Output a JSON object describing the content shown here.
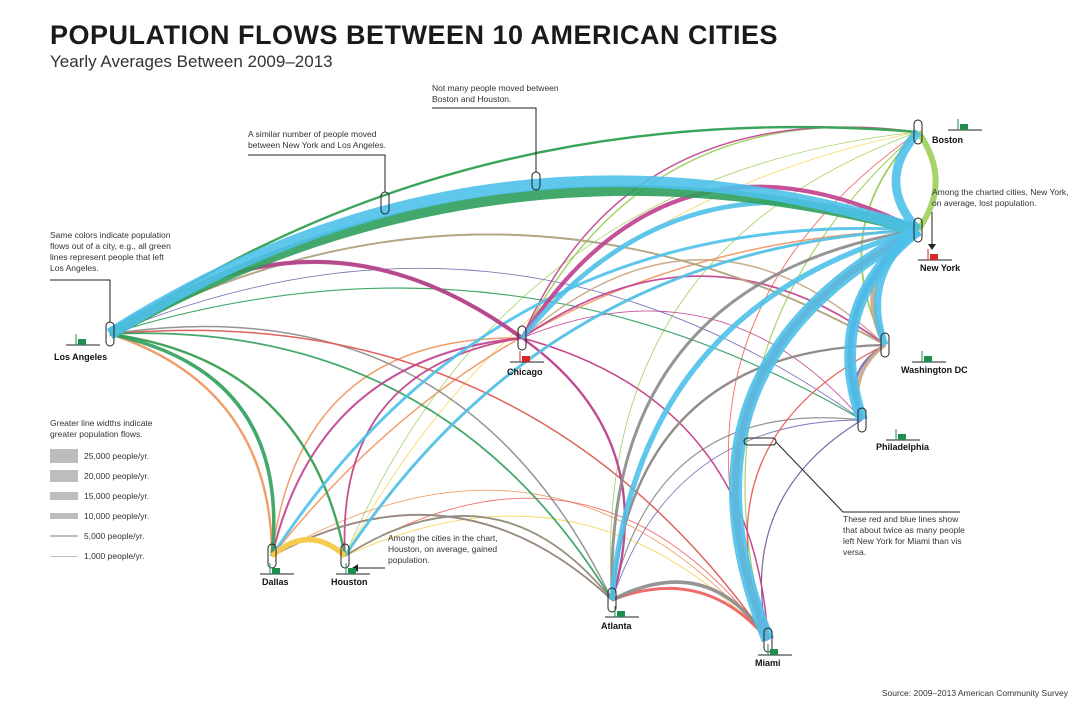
{
  "title": "POPULATION FLOWS BETWEEN 10 AMERICAN CITIES",
  "subtitle": "Yearly Averages Between 2009–2013",
  "source": "Source: 2009–2013 American Community Survey",
  "cities": [
    {
      "id": "la",
      "name": "Los Angeles",
      "color": "#2e9e5b",
      "net": "gain"
    },
    {
      "id": "boston",
      "name": "Boston",
      "color": "#9ccf5a",
      "net": "gain"
    },
    {
      "id": "ny",
      "name": "New York",
      "color": "#4ec0ea",
      "net": "loss"
    },
    {
      "id": "chicago",
      "name": "Chicago",
      "color": "#c0408f",
      "net": "loss"
    },
    {
      "id": "dc",
      "name": "Washington DC",
      "color": "#c8a585",
      "net": "gain"
    },
    {
      "id": "philly",
      "name": "Philadelphia",
      "color": "#6f67b0",
      "net": "gain"
    },
    {
      "id": "dallas",
      "name": "Dallas",
      "color": "#f0925a",
      "net": "gain"
    },
    {
      "id": "houston",
      "name": "Houston",
      "color": "#f6d04d",
      "net": "gain"
    },
    {
      "id": "atlanta",
      "name": "Atlanta",
      "color": "#8a8a8a",
      "net": "gain"
    },
    {
      "id": "miami",
      "name": "Miami",
      "color": "#ef5b5b",
      "net": "gain"
    }
  ],
  "annotations": {
    "boston_houston": "Not many people moved between Boston and Houston.",
    "ny_la": "A similar number of people moved between New York and Los Angeles.",
    "colors": "Same colors indicate population flows out of a city, e.g., all green lines represent people that left Los Angeles.",
    "ny_loss": "Among the charted cities, New York, on average, lost population.",
    "houston_gain": "Among the cities in the chart, Houston, on average, gained population.",
    "ny_miami": "These red and blue lines show that about twice as many people left New York for Miami than vis versa."
  },
  "legend": {
    "title": "Greater line widths indicate greater population flows.",
    "items": [
      {
        "label": "25,000 people/yr.",
        "value": 25000
      },
      {
        "label": "20,000 people/yr.",
        "value": 20000
      },
      {
        "label": "15,000 people/yr.",
        "value": 15000
      },
      {
        "label": "10,000 people/yr.",
        "value": 10000
      },
      {
        "label": "5,000 people/yr.",
        "value": 5000
      },
      {
        "label": "1,000 people/yr.",
        "value": 1000
      }
    ]
  },
  "flows": [
    {
      "from": "ny",
      "to": "la",
      "value": 20000
    },
    {
      "from": "la",
      "to": "ny",
      "value": 18000
    },
    {
      "from": "ny",
      "to": "miami",
      "value": 22000
    },
    {
      "from": "miami",
      "to": "ny",
      "value": 11000
    },
    {
      "from": "ny",
      "to": "boston",
      "value": 15000
    },
    {
      "from": "ny",
      "to": "philly",
      "value": 20000
    },
    {
      "from": "ny",
      "to": "dc",
      "value": 12000
    },
    {
      "from": "ny",
      "to": "atlanta",
      "value": 9000
    },
    {
      "from": "ny",
      "to": "chicago",
      "value": 8000
    },
    {
      "from": "ny",
      "to": "houston",
      "value": 5000
    },
    {
      "from": "ny",
      "to": "dallas",
      "value": 5000
    },
    {
      "from": "boston",
      "to": "ny",
      "value": 10000
    },
    {
      "from": "boston",
      "to": "la",
      "value": 4000
    },
    {
      "from": "boston",
      "to": "chicago",
      "value": 2500
    },
    {
      "from": "boston",
      "to": "dc",
      "value": 3000
    },
    {
      "from": "boston",
      "to": "atlanta",
      "value": 1500
    },
    {
      "from": "boston",
      "to": "miami",
      "value": 2000
    },
    {
      "from": "boston",
      "to": "houston",
      "value": 1000
    },
    {
      "from": "la",
      "to": "chicago",
      "value": 5000
    },
    {
      "from": "la",
      "to": "dallas",
      "value": 6000
    },
    {
      "from": "la",
      "to": "houston",
      "value": 4000
    },
    {
      "from": "la",
      "to": "boston",
      "value": 4000
    },
    {
      "from": "la",
      "to": "dc",
      "value": 3000
    },
    {
      "from": "la",
      "to": "atlanta",
      "value": 3000
    },
    {
      "from": "la",
      "to": "miami",
      "value": 2000
    },
    {
      "from": "la",
      "to": "philly",
      "value": 2000
    },
    {
      "from": "chicago",
      "to": "la",
      "value": 7000
    },
    {
      "from": "chicago",
      "to": "ny",
      "value": 7000
    },
    {
      "from": "chicago",
      "to": "atlanta",
      "value": 4000
    },
    {
      "from": "chicago",
      "to": "dallas",
      "value": 3500
    },
    {
      "from": "chicago",
      "to": "houston",
      "value": 3000
    },
    {
      "from": "chicago",
      "to": "dc",
      "value": 3000
    },
    {
      "from": "chicago",
      "to": "boston",
      "value": 2500
    },
    {
      "from": "chicago",
      "to": "miami",
      "value": 2500
    },
    {
      "from": "chicago",
      "to": "philly",
      "value": 1500
    },
    {
      "from": "dc",
      "to": "ny",
      "value": 9000
    },
    {
      "from": "dc",
      "to": "philly",
      "value": 6000
    },
    {
      "from": "dc",
      "to": "la",
      "value": 3000
    },
    {
      "from": "dc",
      "to": "atlanta",
      "value": 3500
    },
    {
      "from": "dc",
      "to": "chicago",
      "value": 2500
    },
    {
      "from": "dc",
      "to": "boston",
      "value": 2500
    },
    {
      "from": "dc",
      "to": "miami",
      "value": 2000
    },
    {
      "from": "philly",
      "to": "ny",
      "value": 9000
    },
    {
      "from": "philly",
      "to": "dc",
      "value": 4000
    },
    {
      "from": "philly",
      "to": "la",
      "value": 1500
    },
    {
      "from": "philly",
      "to": "miami",
      "value": 2000
    },
    {
      "from": "philly",
      "to": "atlanta",
      "value": 1500
    },
    {
      "from": "dallas",
      "to": "houston",
      "value": 8000
    },
    {
      "from": "dallas",
      "to": "la",
      "value": 4000
    },
    {
      "from": "dallas",
      "to": "atlanta",
      "value": 3000
    },
    {
      "from": "dallas",
      "to": "chicago",
      "value": 2500
    },
    {
      "from": "dallas",
      "to": "ny",
      "value": 2500
    },
    {
      "from": "dallas",
      "to": "miami",
      "value": 1500
    },
    {
      "from": "houston",
      "to": "dallas",
      "value": 9000
    },
    {
      "from": "houston",
      "to": "la",
      "value": 3500
    },
    {
      "from": "houston",
      "to": "atlanta",
      "value": 3000
    },
    {
      "from": "houston",
      "to": "chicago",
      "value": 2000
    },
    {
      "from": "houston",
      "to": "ny",
      "value": 2000
    },
    {
      "from": "houston",
      "to": "miami",
      "value": 1500
    },
    {
      "from": "houston",
      "to": "boston",
      "value": 1000
    },
    {
      "from": "atlanta",
      "to": "miami",
      "value": 6000
    },
    {
      "from": "atlanta",
      "to": "ny",
      "value": 5000
    },
    {
      "from": "atlanta",
      "to": "dc",
      "value": 4000
    },
    {
      "from": "atlanta",
      "to": "dallas",
      "value": 3000
    },
    {
      "from": "atlanta",
      "to": "houston",
      "value": 3000
    },
    {
      "from": "atlanta",
      "to": "la",
      "value": 2500
    },
    {
      "from": "atlanta",
      "to": "chicago",
      "value": 2500
    },
    {
      "from": "atlanta",
      "to": "philly",
      "value": 2000
    },
    {
      "from": "miami",
      "to": "atlanta",
      "value": 5000
    },
    {
      "from": "miami",
      "to": "la",
      "value": 2500
    },
    {
      "from": "miami",
      "to": "chicago",
      "value": 2000
    },
    {
      "from": "miami",
      "to": "dc",
      "value": 2000
    },
    {
      "from": "miami",
      "to": "houston",
      "value": 1500
    },
    {
      "from": "miami",
      "to": "philly",
      "value": 1500
    },
    {
      "from": "miami",
      "to": "boston",
      "value": 1500
    }
  ]
}
